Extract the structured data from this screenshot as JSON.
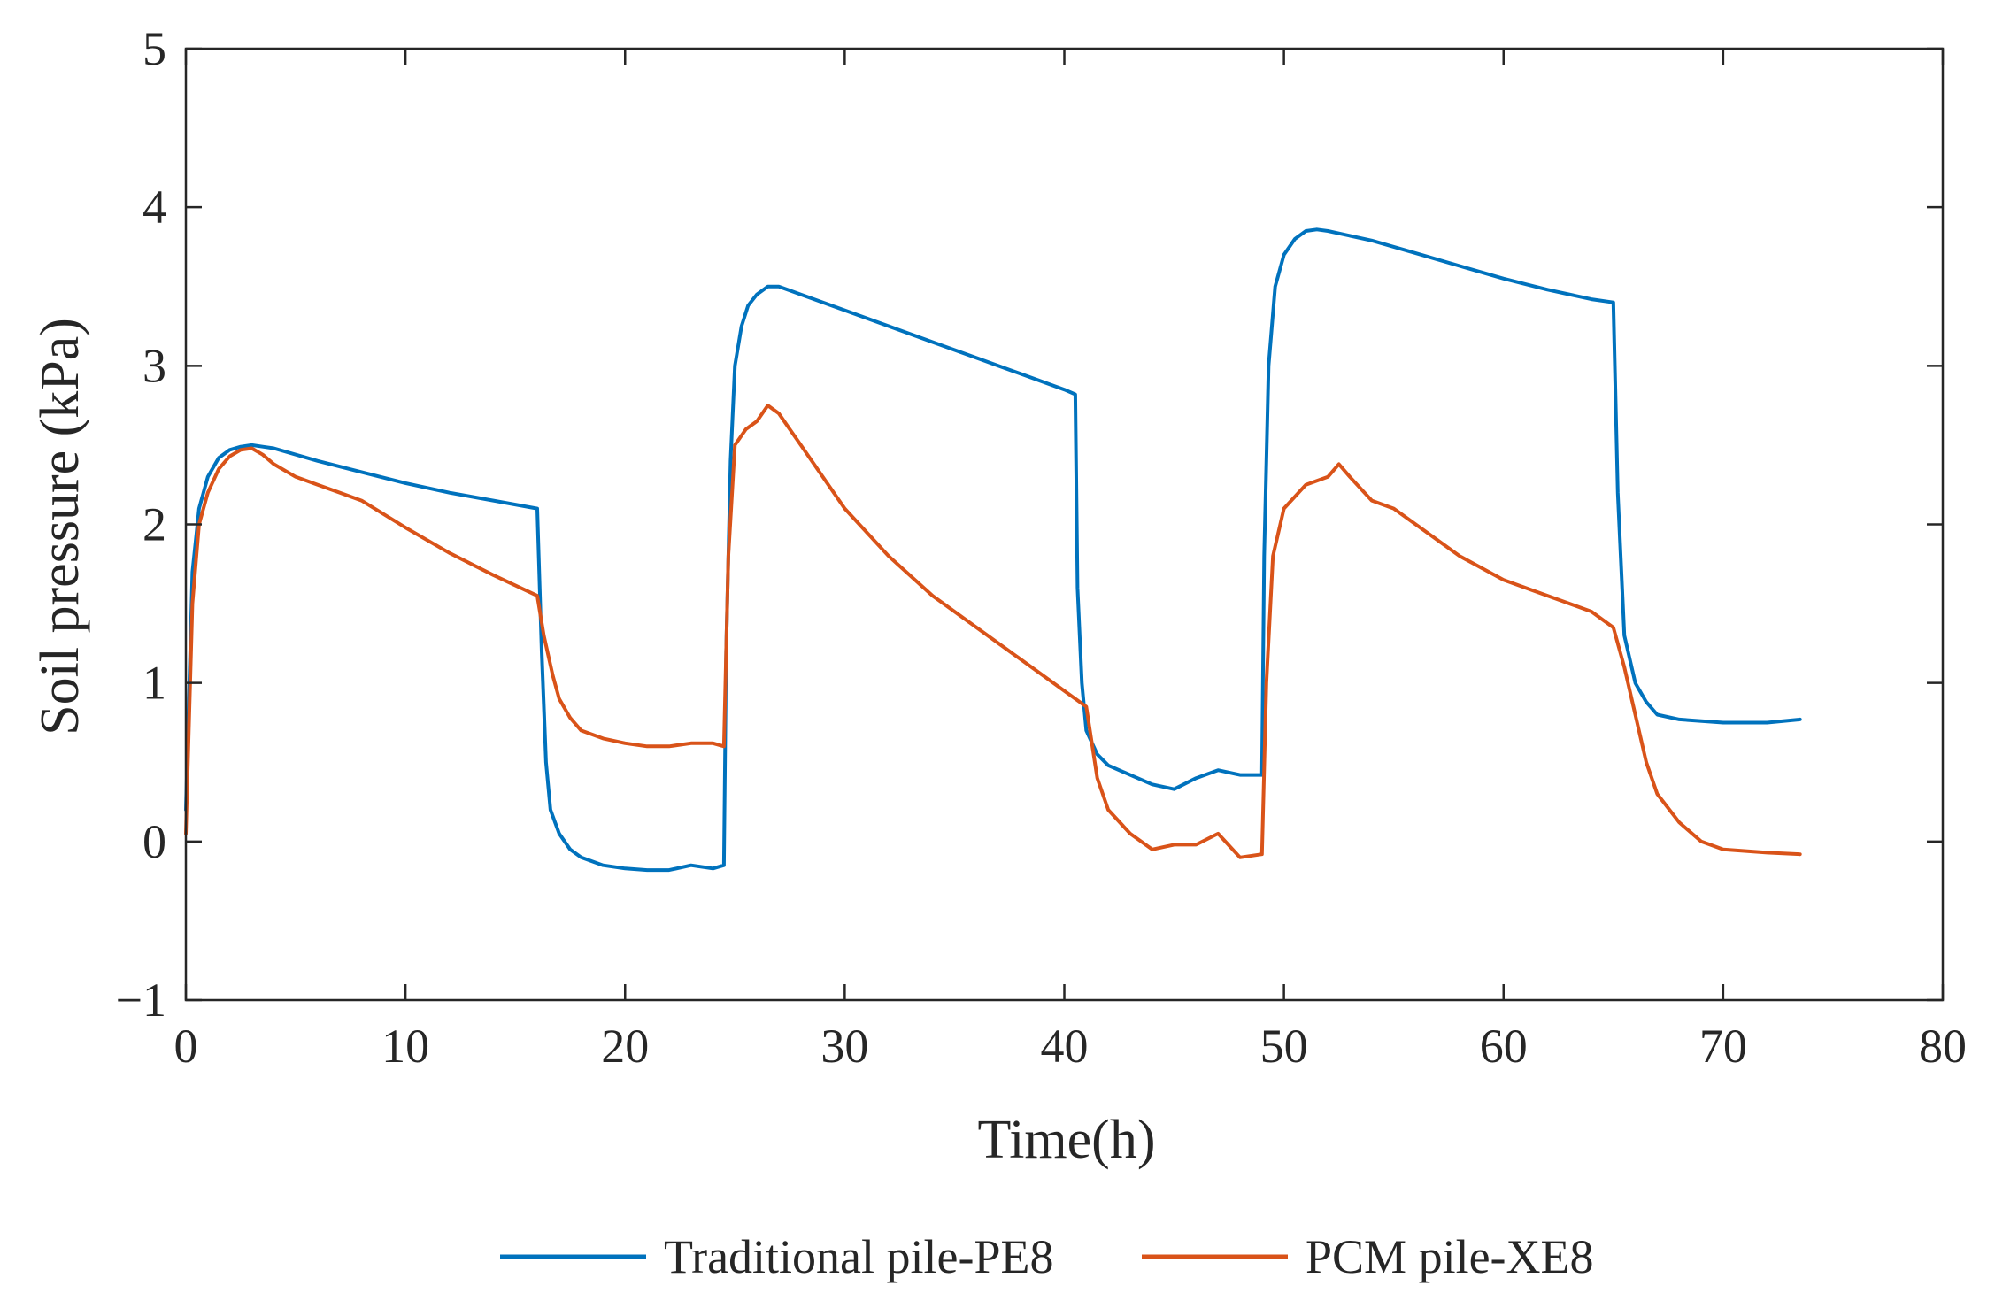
{
  "chart_data": {
    "type": "line",
    "title": "",
    "xlabel": "Time(h)",
    "ylabel": "Soil pressure (kPa)",
    "xlim": [
      0,
      80
    ],
    "ylim": [
      -1,
      5
    ],
    "xticks": [
      0,
      10,
      20,
      30,
      40,
      50,
      60,
      70,
      80
    ],
    "yticks": [
      -1,
      0,
      1,
      2,
      3,
      4,
      5
    ],
    "xtick_labels": [
      "0",
      "10",
      "20",
      "30",
      "40",
      "50",
      "60",
      "70",
      "80"
    ],
    "ytick_labels": [
      "−1",
      "0",
      "1",
      "2",
      "3",
      "4",
      "5"
    ],
    "grid": false,
    "box": true,
    "legend_position": "bottom-outside",
    "series": [
      {
        "name": "Traditional pile-PE8",
        "color": "#0072BD",
        "x": [
          0,
          0.3,
          0.6,
          1.0,
          1.5,
          2.0,
          2.5,
          3.0,
          3.5,
          4,
          6,
          8,
          10,
          12,
          14,
          16,
          16.2,
          16.4,
          16.6,
          17,
          17.5,
          18,
          19,
          20,
          21,
          22,
          23,
          24,
          24.5,
          24.6,
          24.8,
          25,
          25.3,
          25.6,
          26,
          26.5,
          27,
          28,
          30,
          32,
          34,
          36,
          38,
          40,
          40.5,
          40.6,
          40.8,
          41,
          41.5,
          42,
          43,
          44,
          45,
          46,
          47,
          48,
          49,
          49.1,
          49.3,
          49.6,
          50,
          50.5,
          51,
          51.5,
          52,
          54,
          56,
          58,
          60,
          62,
          64,
          65,
          65.2,
          65.5,
          66,
          66.5,
          67,
          68,
          70,
          72,
          73.5
        ],
        "y": [
          0.2,
          1.7,
          2.1,
          2.3,
          2.42,
          2.47,
          2.49,
          2.5,
          2.49,
          2.48,
          2.4,
          2.33,
          2.26,
          2.2,
          2.15,
          2.1,
          1.2,
          0.5,
          0.2,
          0.05,
          -0.05,
          -0.1,
          -0.15,
          -0.17,
          -0.18,
          -0.18,
          -0.15,
          -0.17,
          -0.15,
          1.2,
          2.4,
          3.0,
          3.25,
          3.38,
          3.45,
          3.5,
          3.5,
          3.45,
          3.35,
          3.25,
          3.15,
          3.05,
          2.95,
          2.85,
          2.82,
          1.6,
          1.0,
          0.7,
          0.55,
          0.48,
          0.42,
          0.36,
          0.33,
          0.4,
          0.45,
          0.42,
          0.42,
          1.8,
          3.0,
          3.5,
          3.7,
          3.8,
          3.85,
          3.86,
          3.85,
          3.79,
          3.71,
          3.63,
          3.55,
          3.48,
          3.42,
          3.4,
          2.2,
          1.3,
          1.0,
          0.88,
          0.8,
          0.77,
          0.75,
          0.75,
          0.77
        ]
      },
      {
        "name": "PCM pile-XE8",
        "color": "#D95319",
        "x": [
          0,
          0.3,
          0.6,
          1.0,
          1.5,
          2.0,
          2.5,
          3.0,
          3.5,
          4,
          5,
          6,
          8,
          10,
          12,
          14,
          16,
          16.3,
          16.7,
          17,
          17.5,
          18,
          19,
          20,
          21,
          22,
          23,
          24,
          24.5,
          24.7,
          25,
          25.5,
          26,
          26.5,
          27,
          27.5,
          28,
          29,
          30,
          32,
          34,
          36,
          38,
          40,
          41,
          41.5,
          42,
          43,
          44,
          45,
          46,
          47,
          48,
          49,
          49.2,
          49.5,
          50,
          51,
          52,
          52.5,
          53,
          54,
          55,
          56,
          58,
          60,
          62,
          64,
          65,
          65.5,
          66,
          66.5,
          67,
          68,
          69,
          70,
          72,
          73.5
        ],
        "y": [
          0.05,
          1.5,
          2.0,
          2.2,
          2.35,
          2.43,
          2.47,
          2.48,
          2.44,
          2.38,
          2.3,
          2.25,
          2.15,
          1.98,
          1.82,
          1.68,
          1.55,
          1.3,
          1.05,
          0.9,
          0.78,
          0.7,
          0.65,
          0.62,
          0.6,
          0.6,
          0.62,
          0.62,
          0.6,
          1.8,
          2.5,
          2.6,
          2.65,
          2.75,
          2.7,
          2.6,
          2.5,
          2.3,
          2.1,
          1.8,
          1.55,
          1.35,
          1.15,
          0.95,
          0.85,
          0.4,
          0.2,
          0.05,
          -0.05,
          -0.02,
          -0.02,
          0.05,
          -0.1,
          -0.08,
          1.0,
          1.8,
          2.1,
          2.25,
          2.3,
          2.38,
          2.3,
          2.15,
          2.1,
          2.0,
          1.8,
          1.65,
          1.55,
          1.45,
          1.35,
          1.1,
          0.8,
          0.5,
          0.3,
          0.12,
          0.0,
          -0.05,
          -0.07,
          -0.08
        ]
      }
    ]
  }
}
